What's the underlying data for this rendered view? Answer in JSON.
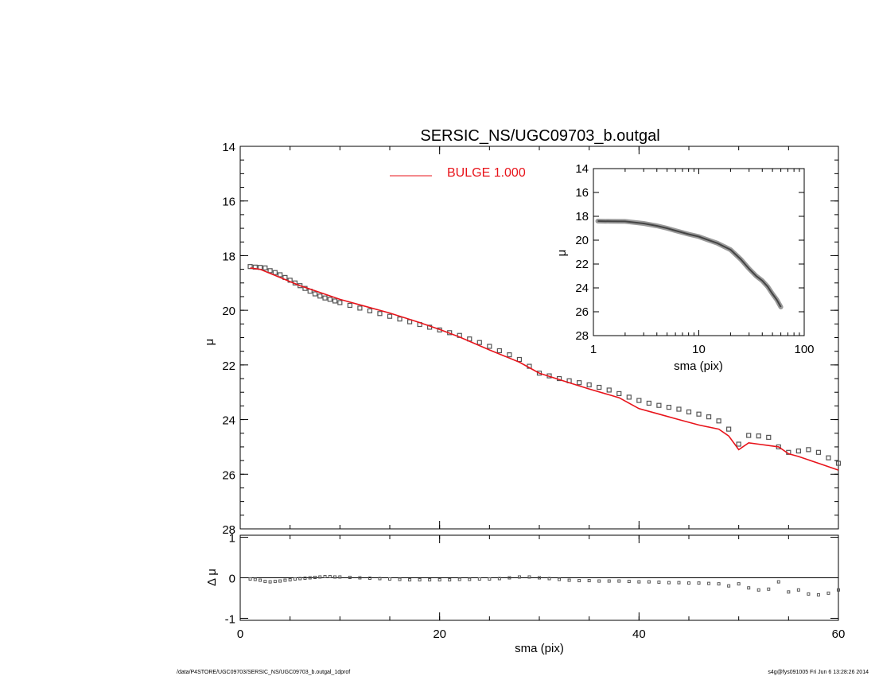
{
  "title": "SERSIC_NS/UGC09703_b.outgal",
  "footer": {
    "left": "/data/P4STORE/UGC09703/SERSIC_NS/UGC09703_b.outgal_1dprof",
    "right": "s4g@fys091005  Fri Jun  6 13:28:26 2014"
  },
  "colors": {
    "model": "#e8141b",
    "data": "#555555"
  },
  "chart_data": [
    {
      "id": "main",
      "type": "scatter",
      "ylabel": "μ",
      "xlabel": "",
      "xlim": [
        0,
        60
      ],
      "ylim": [
        28,
        14
      ],
      "yticks": [
        14,
        16,
        18,
        20,
        22,
        24,
        26,
        28
      ],
      "xticks": [
        0,
        20,
        40,
        60
      ],
      "grid": false,
      "legend": {
        "position": "top-center",
        "entries": [
          {
            "label": "BULGE  1.000",
            "color": "#e8141b"
          }
        ]
      },
      "series": [
        {
          "kind": "points",
          "x": [
            1.0,
            1.5,
            2.0,
            2.5,
            3.0,
            3.5,
            4.0,
            4.5,
            5.0,
            5.5,
            6.0,
            6.5,
            7.0,
            7.5,
            8.0,
            8.5,
            9.0,
            9.5,
            10.0,
            11,
            12,
            13,
            14,
            15,
            16,
            17,
            18,
            19,
            20,
            21,
            22,
            23,
            24,
            25,
            26,
            27,
            28,
            29,
            30,
            31,
            32,
            33,
            34,
            35,
            36,
            37,
            38,
            39,
            40,
            41,
            42,
            43,
            44,
            45,
            46,
            47,
            48,
            49,
            50,
            51,
            52,
            53,
            54,
            55,
            56,
            57,
            58,
            59,
            60
          ],
          "y": [
            18.4,
            18.42,
            18.43,
            18.45,
            18.55,
            18.62,
            18.7,
            18.8,
            18.9,
            19.0,
            19.1,
            19.2,
            19.3,
            19.4,
            19.48,
            19.55,
            19.6,
            19.66,
            19.72,
            19.82,
            19.92,
            20.02,
            20.12,
            20.22,
            20.32,
            20.42,
            20.52,
            20.62,
            20.72,
            20.82,
            20.92,
            21.05,
            21.18,
            21.32,
            21.48,
            21.63,
            21.8,
            22.05,
            22.3,
            22.4,
            22.5,
            22.58,
            22.65,
            22.73,
            22.82,
            22.92,
            23.05,
            23.18,
            23.3,
            23.4,
            23.48,
            23.55,
            23.62,
            23.72,
            23.8,
            23.9,
            24.05,
            24.35,
            24.9,
            24.58,
            24.6,
            24.65,
            25.0,
            25.2,
            25.15,
            25.1,
            25.2,
            25.4,
            25.6
          ],
          "color": "#555555"
        },
        {
          "name": "BULGE  1.000",
          "kind": "line",
          "x": [
            1,
            2,
            3,
            4,
            5,
            6,
            8,
            10,
            12,
            15,
            18,
            20,
            22,
            25,
            28,
            30,
            33,
            35,
            38,
            40,
            42,
            44,
            46,
            48,
            49,
            50,
            51,
            52,
            53,
            54,
            55,
            56,
            58,
            60
          ],
          "y": [
            18.45,
            18.5,
            18.65,
            18.8,
            18.95,
            19.1,
            19.35,
            19.6,
            19.8,
            20.1,
            20.45,
            20.7,
            20.98,
            21.45,
            21.9,
            22.3,
            22.65,
            22.88,
            23.2,
            23.6,
            23.8,
            24.0,
            24.2,
            24.35,
            24.6,
            25.1,
            24.85,
            24.9,
            24.95,
            25.0,
            25.25,
            25.35,
            25.6,
            25.85
          ],
          "color": "#e8141b"
        }
      ]
    },
    {
      "id": "residual",
      "type": "scatter",
      "ylabel": "Δ μ",
      "xlabel": "sma (pix)",
      "xlim": [
        0,
        60
      ],
      "ylim": [
        -1.05,
        1.05
      ],
      "yticks": [
        -1,
        0,
        1
      ],
      "xticks": [
        0,
        20,
        40,
        60
      ],
      "series": [
        {
          "kind": "points",
          "x": [
            1,
            1.5,
            2,
            2.5,
            3,
            3.5,
            4,
            4.5,
            5,
            5.5,
            6,
            6.5,
            7,
            7.5,
            8,
            8.5,
            9,
            9.5,
            10,
            11,
            12,
            13,
            14,
            15,
            16,
            17,
            18,
            19,
            20,
            21,
            22,
            23,
            24,
            25,
            26,
            27,
            28,
            29,
            30,
            31,
            32,
            33,
            34,
            35,
            36,
            37,
            38,
            39,
            40,
            41,
            42,
            43,
            44,
            45,
            46,
            47,
            48,
            49,
            50,
            51,
            52,
            53,
            54,
            55,
            56,
            57,
            58,
            59,
            60
          ],
          "y": [
            -0.03,
            -0.04,
            -0.06,
            -0.09,
            -0.1,
            -0.09,
            -0.08,
            -0.06,
            -0.05,
            -0.03,
            -0.02,
            -0.01,
            0.0,
            0.01,
            0.02,
            0.03,
            0.03,
            0.02,
            0.02,
            0.01,
            0.0,
            -0.01,
            -0.02,
            -0.03,
            -0.04,
            -0.05,
            -0.05,
            -0.05,
            -0.05,
            -0.05,
            -0.04,
            -0.04,
            -0.03,
            -0.03,
            -0.02,
            0.0,
            0.02,
            0.02,
            0.0,
            -0.02,
            -0.04,
            -0.06,
            -0.07,
            -0.07,
            -0.08,
            -0.08,
            -0.08,
            -0.09,
            -0.1,
            -0.1,
            -0.11,
            -0.12,
            -0.12,
            -0.13,
            -0.13,
            -0.14,
            -0.15,
            -0.2,
            -0.15,
            -0.25,
            -0.3,
            -0.28,
            -0.1,
            -0.35,
            -0.3,
            -0.4,
            -0.42,
            -0.38,
            -0.3
          ],
          "color": "#555555"
        }
      ]
    },
    {
      "id": "inset",
      "type": "line",
      "ylabel": "μ",
      "xlabel": "sma (pix)",
      "xscale": "log",
      "xlim": [
        1,
        100
      ],
      "ylim": [
        28,
        14
      ],
      "yticks": [
        14,
        16,
        18,
        20,
        22,
        24,
        26,
        28
      ],
      "xticks": [
        1,
        10,
        100
      ],
      "series": [
        {
          "kind": "band",
          "x": [
            1.1,
            1.5,
            2,
            3,
            4,
            5,
            6,
            8,
            10,
            12,
            15,
            18,
            20,
            25,
            30,
            35,
            40,
            45,
            50,
            55,
            60
          ],
          "y": [
            18.4,
            18.42,
            18.43,
            18.6,
            18.8,
            19.0,
            19.2,
            19.5,
            19.7,
            19.95,
            20.25,
            20.6,
            20.8,
            21.6,
            22.4,
            23.0,
            23.4,
            23.9,
            24.5,
            25.0,
            25.6
          ],
          "color": "#444444"
        }
      ]
    }
  ]
}
